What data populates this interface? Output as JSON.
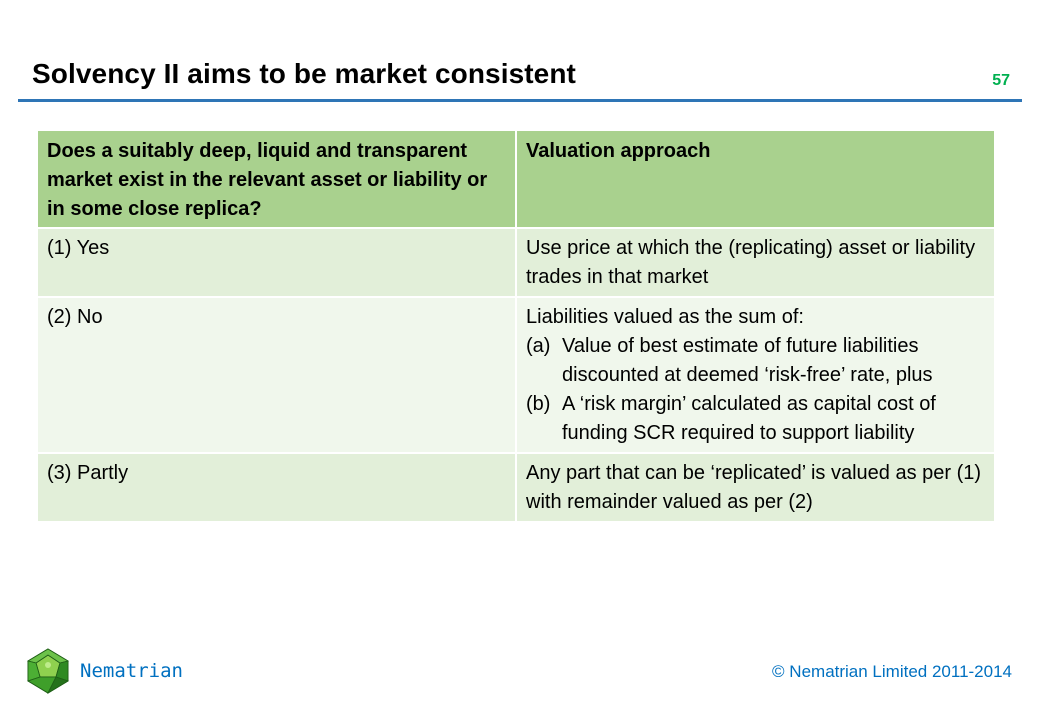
{
  "slide": {
    "title": "Solvency II aims to be market consistent",
    "number": "57"
  },
  "table": {
    "headers": [
      "Does a suitably deep, liquid and transparent market exist in the relevant asset or liability or in some close replica?",
      "Valuation approach"
    ],
    "rows": [
      {
        "question": "(1) Yes",
        "approach": "Use price at which the (replicating) asset or liability trades in that market"
      },
      {
        "question": "(2) No",
        "approach_intro": "Liabilities valued as the sum of:",
        "approach_items": [
          {
            "marker": "(a)",
            "text": "Value of best estimate of future liabilities discounted at deemed ‘risk-free’ rate, plus"
          },
          {
            "marker": "(b)",
            "text": "A ‘risk margin’ calculated as capital cost of funding SCR required to support liability"
          }
        ]
      },
      {
        "question": "(3) Partly",
        "approach": "Any part that can be ‘replicated’ is valued as per (1) with remainder valued as per (2)"
      }
    ]
  },
  "footer": {
    "brand": "Nematrian",
    "copyright": "© Nematrian Limited 2011-2014",
    "logo_icon": "green-dodecahedron-logo-icon"
  }
}
